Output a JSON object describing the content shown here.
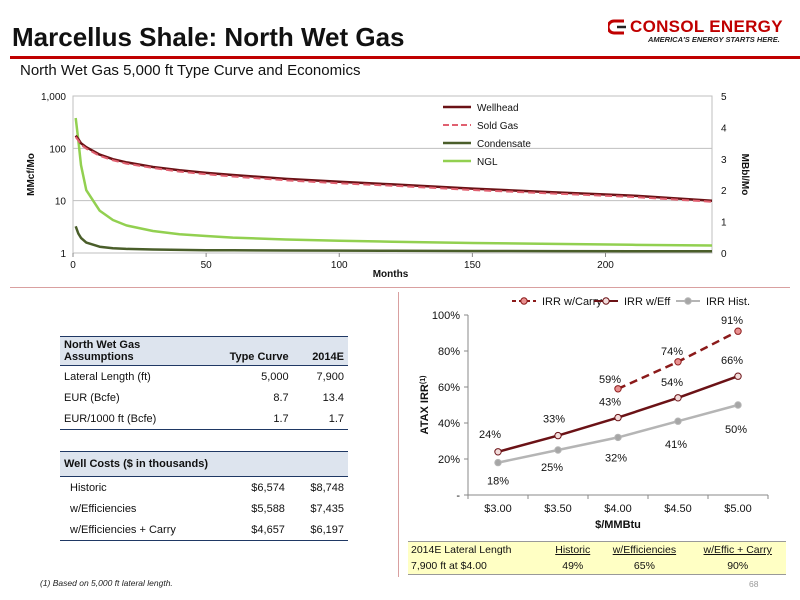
{
  "header": {
    "title": "Marcellus Shale: North Wet Gas",
    "subtitle": "North Wet Gas 5,000 ft Type Curve and Economics",
    "logo_name": "CONSOL ENERGY",
    "logo_tagline": "AMERICA'S ENERGY STARTS HERE.",
    "accent_color": "#c00000"
  },
  "chart_data": [
    {
      "type": "line",
      "xlabel": "Months",
      "ylabel": "MMcf/Mo",
      "y2label": "MBbl/Mo",
      "xlim": [
        0,
        240
      ],
      "ylim": [
        1,
        1000
      ],
      "yscale": "log",
      "y2lim": [
        0,
        5
      ],
      "xticks": [
        "0",
        "50",
        "100",
        "150",
        "200"
      ],
      "yticks": [
        "1",
        "10",
        "100",
        "1,000"
      ],
      "y2ticks": [
        "0",
        "1",
        "2",
        "3",
        "4",
        "5"
      ],
      "legend": "top-right",
      "x": [
        1,
        2,
        3,
        5,
        10,
        15,
        20,
        30,
        40,
        50,
        60,
        80,
        100,
        120,
        150,
        180,
        210,
        240
      ],
      "series": [
        {
          "name": "Wellhead",
          "axis": "left",
          "color": "#6b1216",
          "values": [
            175,
            150,
            125,
            105,
            76,
            62,
            54,
            44,
            38,
            34,
            31,
            26,
            23,
            20.5,
            17,
            14.5,
            12.5,
            10
          ]
        },
        {
          "name": "Sold Gas",
          "axis": "left",
          "color": "#e06070",
          "dashed": true,
          "values": [
            165,
            142,
            118,
            99,
            72,
            59,
            51,
            42,
            36,
            32,
            29,
            24.5,
            21.5,
            19.3,
            16,
            13.7,
            11.8,
            9.5
          ]
        },
        {
          "name": "Condensate",
          "axis": "right",
          "color": "#4a5e2a",
          "values": [
            0.85,
            0.62,
            0.48,
            0.33,
            0.2,
            0.15,
            0.13,
            0.11,
            0.1,
            0.09,
            0.085,
            0.08,
            0.075,
            0.07,
            0.065,
            0.06,
            0.057,
            0.055
          ]
        },
        {
          "name": "NGL",
          "axis": "right",
          "color": "#92d050",
          "values": [
            4.3,
            3.6,
            2.8,
            2.0,
            1.35,
            1.05,
            0.88,
            0.7,
            0.6,
            0.54,
            0.49,
            0.43,
            0.39,
            0.36,
            0.32,
            0.29,
            0.26,
            0.24
          ]
        }
      ]
    },
    {
      "type": "line",
      "xlabel": "$/MMBtu",
      "ylabel": "ATAX IRR",
      "ylabel_sup": "(1)",
      "categories": [
        "$3.00",
        "$3.50",
        "$4.00",
        "$4.50",
        "$5.00"
      ],
      "yticks": [
        "-",
        "20%",
        "40%",
        "60%",
        "80%",
        "100%"
      ],
      "ylim": [
        0,
        100
      ],
      "legend": "top",
      "series": [
        {
          "name": "IRR w/Carry",
          "color": "#8b1a1a",
          "marker": "#e89090",
          "dashed": true,
          "x": [
            2,
            3,
            4
          ],
          "values": [
            59,
            74,
            91
          ],
          "labels": [
            "59%",
            "74%",
            "91%"
          ]
        },
        {
          "name": "IRR w/Eff",
          "color": "#6b1216",
          "marker": "#f2dcdb",
          "x": [
            0,
            1,
            2,
            3,
            4
          ],
          "values": [
            24,
            33,
            43,
            54,
            66
          ],
          "labels": [
            "24%",
            "33%",
            "43%",
            "54%",
            "66%"
          ]
        },
        {
          "name": "IRR Hist.",
          "color": "#b5b5b5",
          "marker": "#a6a6a6",
          "x": [
            0,
            1,
            2,
            3,
            4
          ],
          "values": [
            18,
            25,
            32,
            41,
            50
          ],
          "labels": [
            "18%",
            "25%",
            "32%",
            "41%",
            "50%"
          ]
        }
      ]
    }
  ],
  "assumptions": {
    "header_line1": "North Wet Gas",
    "header_line2": "Assumptions",
    "col1": "Type Curve",
    "col2": "2014E",
    "rows": [
      {
        "label": "Lateral Length (ft)",
        "type_curve": "5,000",
        "e2014": "7,900"
      },
      {
        "label": "EUR (Bcfe)",
        "type_curve": "8.7",
        "e2014": "13.4"
      },
      {
        "label": "EUR/1000 ft (Bcfe)",
        "type_curve": "1.7",
        "e2014": "1.7"
      }
    ]
  },
  "well_costs": {
    "header": "Well Costs ($ in thousands)",
    "rows": [
      {
        "label": "Historic",
        "type_curve": "$6,574",
        "e2014": "$8,748"
      },
      {
        "label": "w/Efficiencies",
        "type_curve": "$5,588",
        "e2014": "$7,435"
      },
      {
        "label": "w/Efficiencies + Carry",
        "type_curve": "$4,657",
        "e2014": "$6,197"
      }
    ]
  },
  "irr_table": {
    "row1": [
      "2014E Lateral Length",
      "Historic",
      "w/Efficiencies",
      "w/Effic + Carry"
    ],
    "row2": [
      "7,900 ft at $4.00",
      "49%",
      "65%",
      "90%"
    ]
  },
  "footer": {
    "footnote": "(1)  Based on 5,000 ft lateral length.",
    "page_number": "68"
  }
}
